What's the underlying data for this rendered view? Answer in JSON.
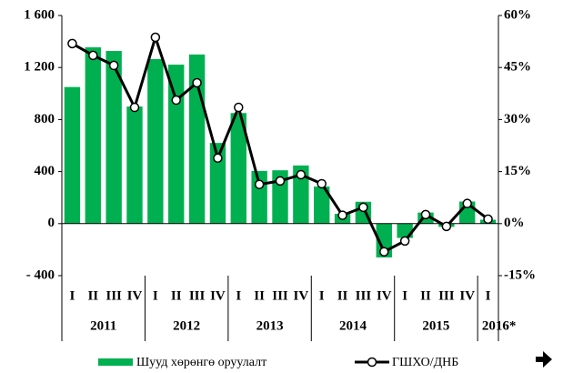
{
  "chart_data": {
    "type": "bar-line",
    "groups": [
      {
        "label": "2011",
        "categories": [
          "I",
          "II",
          "III",
          "IV"
        ]
      },
      {
        "label": "2012",
        "categories": [
          "I",
          "II",
          "III",
          "IV"
        ]
      },
      {
        "label": "2013",
        "categories": [
          "I",
          "II",
          "III",
          "IV"
        ]
      },
      {
        "label": "2014",
        "categories": [
          "I",
          "II",
          "III",
          "IV"
        ]
      },
      {
        "label": "2015",
        "categories": [
          "I",
          "II",
          "III",
          "IV"
        ]
      },
      {
        "label": "2016*",
        "categories": [
          "I"
        ]
      }
    ],
    "series": [
      {
        "name": "Шууд хөрөнгө оруулалт",
        "color": "#00b050",
        "kind": "bar",
        "values": [
          1050,
          1355,
          1327,
          900,
          1265,
          1222,
          1300,
          620,
          850,
          405,
          410,
          447,
          285,
          75,
          168,
          -260,
          -110,
          85,
          -25,
          170,
          30
        ]
      },
      {
        "name": "ГШХО/ДНБ",
        "color": "#000000",
        "kind": "line",
        "axis": "y2",
        "values": [
          51.9,
          48.5,
          45.6,
          33.5,
          53.7,
          35.6,
          40.6,
          18.9,
          33.5,
          11.3,
          12.3,
          14.1,
          11.5,
          2.4,
          4.7,
          -8.1,
          -5.0,
          2.6,
          -0.8,
          5.8,
          1.3
        ]
      }
    ],
    "ylim": [
      -400,
      1600
    ],
    "yticks": [
      {
        "value": -400,
        "label": "- 400"
      },
      0,
      400,
      800,
      {
        "value": 1200,
        "label": "1 200"
      },
      {
        "value": 1600,
        "label": "1 600"
      }
    ],
    "y2lim": [
      -15,
      60
    ],
    "y2ticks": [
      {
        "value": -15,
        "label": "-15%"
      },
      {
        "value": 0,
        "label": "0%"
      },
      {
        "value": 15,
        "label": "15%"
      },
      {
        "value": 30,
        "label": "30%"
      },
      {
        "value": 45,
        "label": "45%"
      },
      {
        "value": 60,
        "label": "60%"
      }
    ],
    "grid": false
  }
}
